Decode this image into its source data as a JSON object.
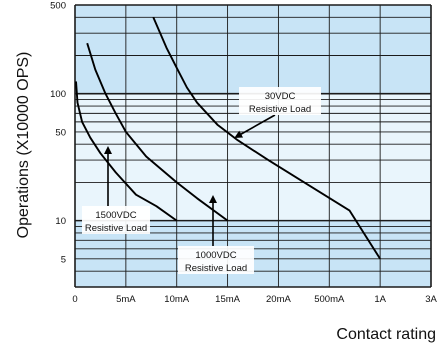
{
  "chart_data": {
    "type": "line",
    "title": "",
    "xlabel": "Contact rating",
    "ylabel": "Operations (X10000 OPS)",
    "x_ticks": [
      "0",
      "5mA",
      "10mA",
      "15mA",
      "20mA",
      "500mA",
      "1A",
      "3A"
    ],
    "y_scale": "log",
    "y_ticks": [
      5,
      10,
      50,
      100,
      500
    ],
    "ylim": [
      3,
      500
    ],
    "grid": true,
    "colors": {
      "band_dark": "#c8e4f6",
      "band_light": "#e9f5fc",
      "grid": "#1b1b1b",
      "line": "#000000",
      "label_bg": "#ffffff"
    },
    "series": [
      {
        "label": [
          "1500VDC",
          "Resistive Load"
        ],
        "points": [
          [
            0.1,
            125
          ],
          [
            0.25,
            85
          ],
          [
            0.7,
            60
          ],
          [
            1.5,
            45
          ],
          [
            2.5,
            34
          ],
          [
            4.0,
            24
          ],
          [
            6.0,
            16
          ],
          [
            8.0,
            13
          ],
          [
            10.0,
            10
          ]
        ]
      },
      {
        "label": [
          "1000VDC",
          "Resistive Load"
        ],
        "points": [
          [
            1.2,
            250
          ],
          [
            2.0,
            155
          ],
          [
            3.0,
            100
          ],
          [
            4.0,
            70
          ],
          [
            5.0,
            50
          ],
          [
            7.0,
            32
          ],
          [
            10.0,
            20
          ],
          [
            12.0,
            15
          ],
          [
            15.0,
            10
          ]
        ]
      },
      {
        "label": [
          "30VDC",
          "Resistive Load"
        ],
        "points": [
          [
            7.7,
            400
          ],
          [
            9.0,
            230
          ],
          [
            10.0,
            160
          ],
          [
            11.0,
            112
          ],
          [
            12.0,
            85
          ],
          [
            14.0,
            57
          ],
          [
            16.0,
            43
          ],
          [
            19.0,
            30
          ],
          [
            23.0,
            19
          ],
          [
            27.0,
            12
          ],
          [
            30.0,
            5
          ]
        ]
      }
    ],
    "annotations": [
      {
        "series": 0,
        "text": [
          "1500VDC",
          "Resistive Load"
        ],
        "arrow_to": [
          3,
          43
        ]
      },
      {
        "series": 1,
        "text": [
          "1000VDC",
          "Resistive Load"
        ],
        "arrow_to": [
          13.8,
          10
        ]
      },
      {
        "series": 2,
        "text": [
          "30VDC",
          "Resistive Load"
        ],
        "arrow_to": [
          16,
          43
        ]
      }
    ]
  }
}
